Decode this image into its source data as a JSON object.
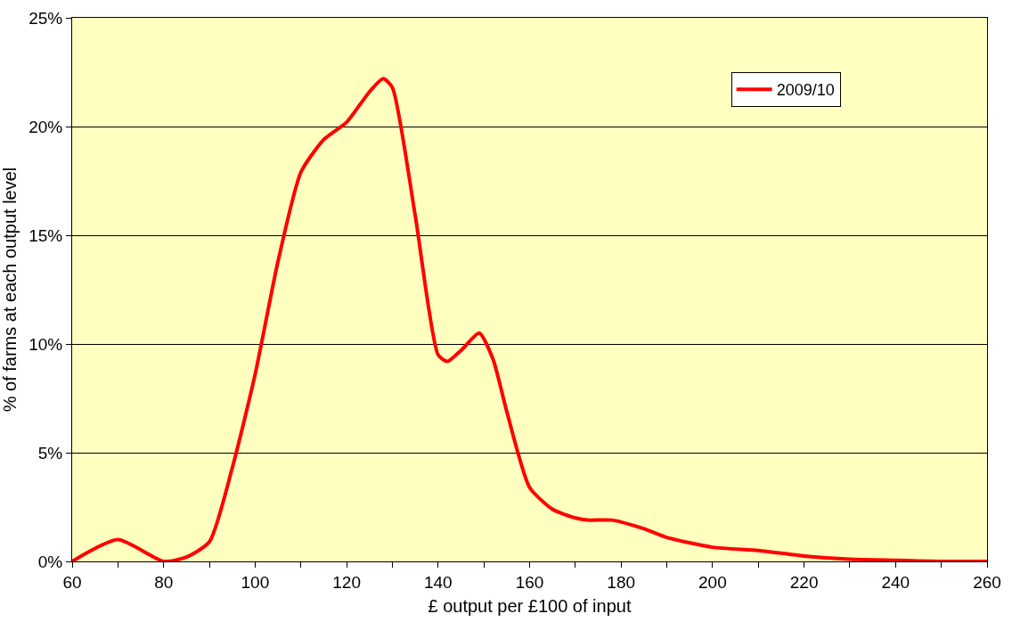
{
  "chart_data": {
    "type": "line",
    "xlabel": "£ output per £100 of input",
    "ylabel": "% of farms at each output level",
    "x": [
      60,
      70,
      80,
      85,
      90,
      95,
      100,
      105,
      110,
      115,
      120,
      125,
      128,
      130,
      135,
      140,
      142,
      145,
      149,
      152,
      155,
      160,
      165,
      170,
      173,
      178,
      185,
      190,
      200,
      210,
      220,
      230,
      240,
      250,
      260
    ],
    "series": [
      {
        "name": "2009/10",
        "color": "#ff0000",
        "values": [
          0,
          1.0,
          0,
          0.2,
          0.9,
          4.3,
          8.6,
          13.8,
          17.9,
          19.4,
          20.2,
          21.6,
          22.2,
          21.8,
          15.9,
          9.5,
          9.2,
          9.7,
          10.5,
          9.3,
          6.9,
          3.4,
          2.4,
          2.0,
          1.9,
          1.9,
          1.5,
          1.1,
          0.65,
          0.5,
          0.25,
          0.1,
          0.05,
          0,
          0
        ]
      }
    ],
    "xlim": [
      60,
      260
    ],
    "xticks": [
      60,
      {
        "value": 70,
        "label": null
      },
      80,
      {
        "value": 90,
        "label": null
      },
      100,
      {
        "value": 110,
        "label": null
      },
      120,
      {
        "value": 130,
        "label": null
      },
      140,
      {
        "value": 150,
        "label": null
      },
      160,
      {
        "value": 170,
        "label": null
      },
      180,
      {
        "value": 190,
        "label": null
      },
      200,
      {
        "value": 210,
        "label": null
      },
      220,
      {
        "value": 230,
        "label": null
      },
      240,
      {
        "value": 250,
        "label": null
      },
      260
    ],
    "ylim": [
      0,
      25
    ],
    "yticks": [
      {
        "value": 0,
        "label": "0%"
      },
      {
        "value": 5,
        "label": "5%"
      },
      {
        "value": 10,
        "label": "10%"
      },
      {
        "value": 15,
        "label": "15%"
      },
      {
        "value": 20,
        "label": "20%"
      },
      {
        "value": 25,
        "label": "25%"
      }
    ],
    "grid": "y",
    "legend": "top right",
    "marker": "none",
    "line_style": "solid"
  }
}
